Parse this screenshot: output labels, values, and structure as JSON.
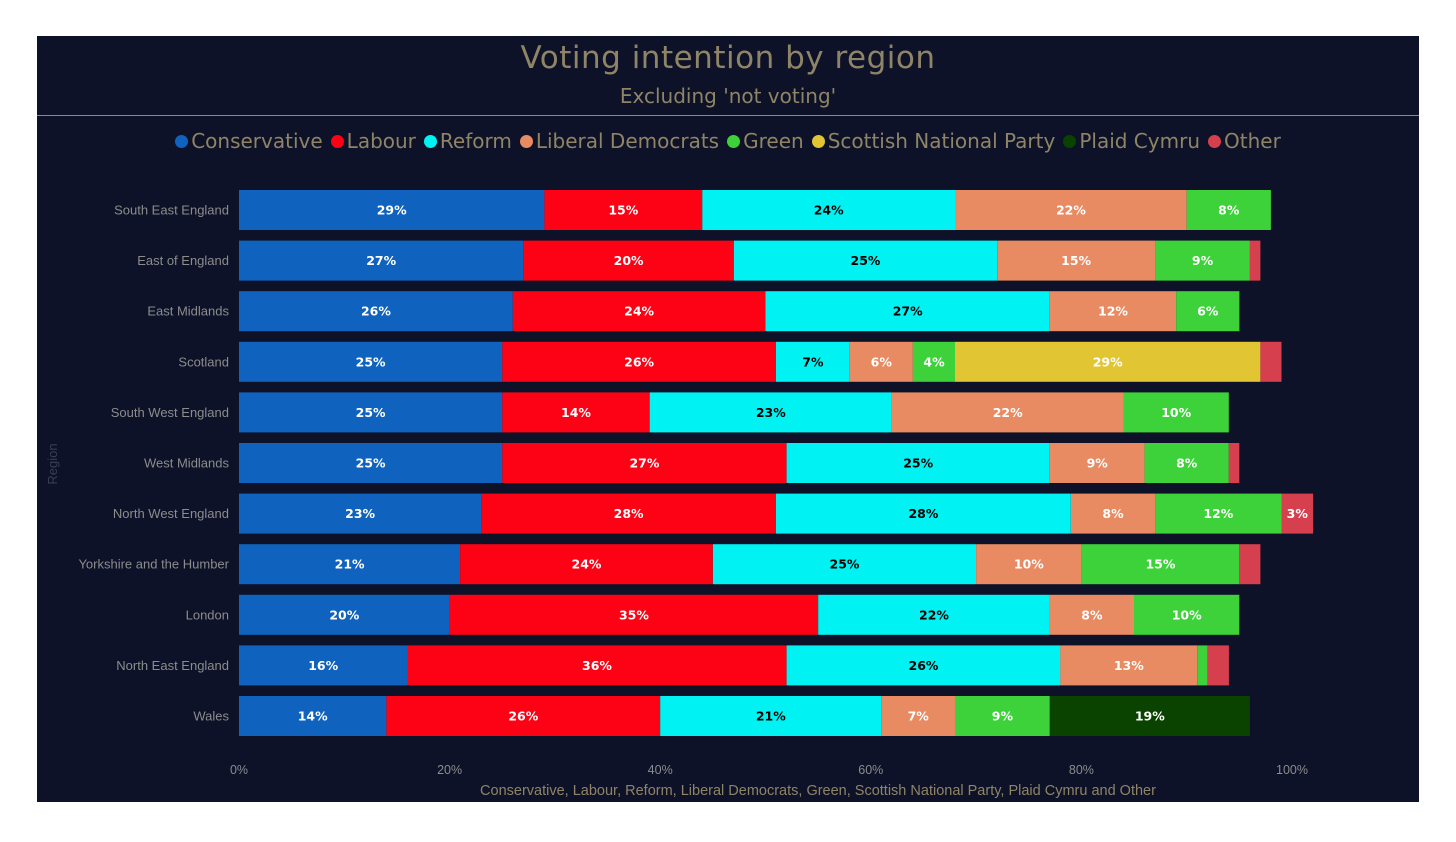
{
  "chart_data": {
    "type": "bar",
    "orientation": "horizontal",
    "stacked": true,
    "title": "Voting intention by region",
    "subtitle": "Excluding 'not voting'",
    "xlabel": "Conservative, Labour, Reform, Liberal Democrats, Green, Scottish National Party, Plaid Cymru and Other",
    "ylabel": "Region",
    "xlim": [
      0,
      100
    ],
    "x_ticks": [
      "0%",
      "20%",
      "40%",
      "60%",
      "80%",
      "100%"
    ],
    "legend_position": "top",
    "grid": false,
    "categories": [
      "South East England",
      "East of England",
      "East Midlands",
      "Scotland",
      "South West England",
      "West Midlands",
      "North West England",
      "Yorkshire and the Humber",
      "London",
      "North East England",
      "Wales"
    ],
    "series": [
      {
        "name": "Conservative",
        "color": "#1062bf",
        "label_color": "#ffffff",
        "values": [
          29,
          27,
          26,
          25,
          25,
          25,
          23,
          21,
          20,
          16,
          14
        ],
        "labels": [
          "29%",
          "27%",
          "26%",
          "25%",
          "25%",
          "25%",
          "23%",
          "21%",
          "20%",
          "16%",
          "14%"
        ]
      },
      {
        "name": "Labour",
        "color": "#fc0214",
        "label_color": "#ffffff",
        "values": [
          15,
          20,
          24,
          26,
          14,
          27,
          28,
          24,
          35,
          36,
          26
        ],
        "labels": [
          "15%",
          "20%",
          "24%",
          "26%",
          "14%",
          "27%",
          "28%",
          "24%",
          "35%",
          "36%",
          "26%"
        ]
      },
      {
        "name": "Reform",
        "color": "#00f2f2",
        "label_color": "#000000",
        "values": [
          24,
          25,
          27,
          7,
          23,
          25,
          28,
          25,
          22,
          26,
          21
        ],
        "labels": [
          "24%",
          "25%",
          "27%",
          "7%",
          "23%",
          "25%",
          "28%",
          "25%",
          "22%",
          "26%",
          "21%"
        ]
      },
      {
        "name": "Liberal Democrats",
        "color": "#e88b62",
        "label_color": "#ffffff",
        "values": [
          22,
          15,
          12,
          6,
          22,
          9,
          8,
          10,
          8,
          13,
          7
        ],
        "labels": [
          "22%",
          "15%",
          "12%",
          "6%",
          "22%",
          "9%",
          "8%",
          "10%",
          "8%",
          "13%",
          "7%"
        ]
      },
      {
        "name": "Green",
        "color": "#3ed23a",
        "label_color": "#ffffff",
        "values": [
          8,
          9,
          6,
          4,
          10,
          8,
          12,
          15,
          10,
          1,
          9
        ],
        "labels": [
          "8%",
          "9%",
          "6%",
          "4%",
          "10%",
          "8%",
          "12%",
          "15%",
          "10%",
          "",
          "9%"
        ]
      },
      {
        "name": "Scottish National Party",
        "color": "#e2c532",
        "label_color": "#ffffff",
        "values": [
          0,
          0,
          0,
          29,
          0,
          0,
          0,
          0,
          0,
          0,
          0
        ],
        "labels": [
          "",
          "",
          "",
          "29%",
          "",
          "",
          "",
          "",
          "",
          "",
          ""
        ]
      },
      {
        "name": "Plaid Cymru",
        "color": "#0a4300",
        "label_color": "#ffffff",
        "values": [
          0,
          0,
          0,
          0,
          0,
          0,
          0,
          0,
          0,
          0,
          19
        ],
        "labels": [
          "",
          "",
          "",
          "",
          "",
          "",
          "",
          "",
          "",
          "",
          "19%"
        ]
      },
      {
        "name": "Other",
        "color": "#d6404e",
        "label_color": "#ffffff",
        "values": [
          0,
          1,
          0,
          2,
          0,
          1,
          3,
          2,
          0,
          2,
          0
        ],
        "labels": [
          "",
          "",
          "",
          "",
          "",
          "",
          "3%",
          "",
          "",
          "",
          ""
        ]
      }
    ]
  }
}
